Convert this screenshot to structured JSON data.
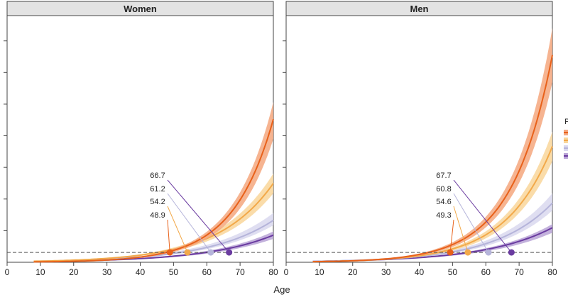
{
  "chart_data": {
    "type": "line",
    "xlabel": "Age",
    "xlim": [
      0,
      80
    ],
    "ylim": [
      0,
      1
    ],
    "x_ticks": [
      "0",
      "10",
      "20",
      "30",
      "40",
      "50",
      "60",
      "70",
      "80"
    ],
    "threshold_y": 0.04,
    "legend_label": "P",
    "series_colors": [
      "#e8611a",
      "#f2a94a",
      "#b5b4da",
      "#6a3ba0"
    ],
    "band_colors": [
      "#f4a77e",
      "#f9d69a",
      "#d9d8ee",
      "#b9a3d6"
    ],
    "panels": [
      {
        "title": "Women",
        "series": [
          {
            "k": 0.083,
            "end_y": 0.58,
            "band_lo": 0.5,
            "band_hi": 0.65
          },
          {
            "k": 0.06,
            "end_y": 0.32,
            "band_lo": 0.28,
            "band_hi": 0.36
          },
          {
            "k": 0.052,
            "end_y": 0.17,
            "band_lo": 0.15,
            "band_hi": 0.2
          },
          {
            "k": 0.05,
            "end_y": 0.11,
            "band_lo": 0.095,
            "band_hi": 0.125
          }
        ],
        "thresholds": [
          {
            "label": "48.9",
            "age": 48.9
          },
          {
            "label": "54.2",
            "age": 54.2
          },
          {
            "label": "61.2",
            "age": 61.2
          },
          {
            "label": "66.7",
            "age": 66.7
          }
        ]
      },
      {
        "title": "Men",
        "series": [
          {
            "k": 0.082,
            "end_y": 0.84,
            "band_lo": 0.73,
            "band_hi": 0.95
          },
          {
            "k": 0.072,
            "end_y": 0.47,
            "band_lo": 0.41,
            "band_hi": 0.53
          },
          {
            "k": 0.058,
            "end_y": 0.24,
            "band_lo": 0.21,
            "band_hi": 0.28
          },
          {
            "k": 0.05,
            "end_y": 0.14,
            "band_lo": 0.12,
            "band_hi": 0.155
          }
        ],
        "thresholds": [
          {
            "label": "49.3",
            "age": 49.3
          },
          {
            "label": "54.6",
            "age": 54.6
          },
          {
            "label": "60.8",
            "age": 60.8
          },
          {
            "label": "67.7",
            "age": 67.7
          }
        ]
      }
    ]
  }
}
